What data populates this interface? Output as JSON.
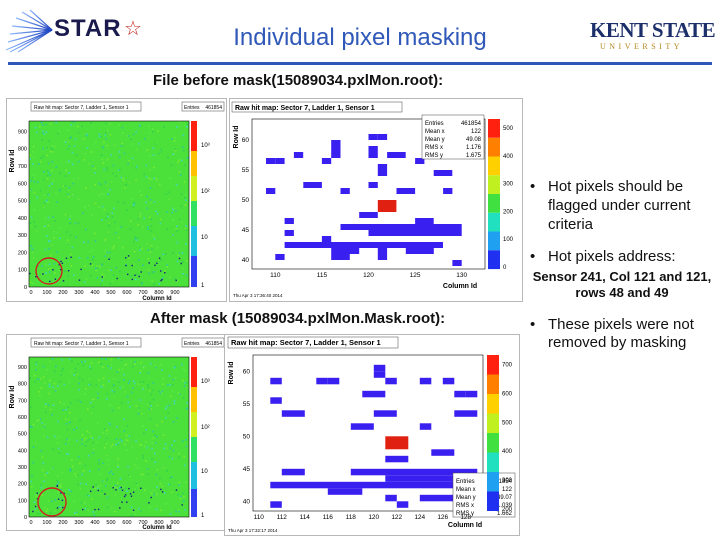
{
  "header": {
    "title": "Individual pixel masking",
    "star_logo_text": "STAR",
    "ksu_logo_text": "KENT STATE",
    "ksu_logo_sub": "UNIVERSITY"
  },
  "captions": {
    "before": "File before mask(15089034.pxlMon.root):",
    "after": "After mask (15089034.pxlMon.Mask.root):"
  },
  "bullets": {
    "b1": "Hot pixels should be flagged under current criteria",
    "b2": "Hot pixels address:",
    "b2_detail": "Sensor 241, Col 121 and 121, rows 48 and 49",
    "b3": "These pixels were not removed by masking"
  },
  "top": {
    "full_map": {
      "title": "Raw hit map: Sector 7, Ladder 1, Sensor 1",
      "entries_label": "Entries",
      "entries_value": "461854",
      "xlabel": "Column Id",
      "ylabel": "Row Id",
      "footer": "Thu Apr 3 17:36:40 2014",
      "xticks": [
        "0",
        "100",
        "200",
        "300",
        "400",
        "500",
        "600",
        "700",
        "800",
        "900"
      ],
      "yticks": [
        "0",
        "100",
        "200",
        "300",
        "400",
        "500",
        "600",
        "700",
        "800",
        "900"
      ],
      "zticks": [
        "1",
        "10",
        "10²",
        "10³"
      ]
    },
    "zoom_map": {
      "title": "Raw hit map: Sector 7, Ladder 1, Sensor 1",
      "xlabel": "Column Id",
      "ylabel": "Row Id",
      "footer": "Thu Apr 3 17:36:40 2014",
      "xticks": [
        "110",
        "115",
        "120",
        "125",
        "130"
      ],
      "yticks": [
        "40",
        "45",
        "50",
        "55",
        "60"
      ],
      "zticks": [
        "0",
        "100",
        "200",
        "300",
        "400",
        "500"
      ],
      "stats": [
        {
          "label": "Entries",
          "value": "461854"
        },
        {
          "label": "Mean x",
          "value": "122"
        },
        {
          "label": "Mean y",
          "value": "49.08"
        },
        {
          "label": "RMS x",
          "value": "1.176"
        },
        {
          "label": "RMS y",
          "value": "1.675"
        }
      ]
    }
  },
  "bottom": {
    "full_map": {
      "title": "Raw hit map: Sector 7, Ladder 1, Sensor 1",
      "entries_label": "Entries",
      "entries_value": "461854",
      "xlabel": "Column Id",
      "ylabel": "Row Id",
      "xticks": [
        "0",
        "100",
        "200",
        "300",
        "400",
        "500",
        "600",
        "700",
        "800",
        "900"
      ],
      "yticks": [
        "0",
        "100",
        "200",
        "300",
        "400",
        "500",
        "600",
        "700",
        "800",
        "900"
      ],
      "zticks": [
        "1",
        "10",
        "10²",
        "10³"
      ]
    },
    "zoom_map": {
      "title": "Raw hit map: Sector 7, Ladder 1, Sensor 1",
      "xlabel": "Column Id",
      "ylabel": "Row Id",
      "footer": "Thu Apr 3 17:32:17 2014",
      "xticks": [
        "110",
        "112",
        "114",
        "116",
        "118",
        "120",
        "122",
        "124",
        "126",
        "128"
      ],
      "yticks": [
        "40",
        "45",
        "50",
        "55",
        "60"
      ],
      "zticks": [
        "200",
        "300",
        "400",
        "500",
        "600",
        "700"
      ],
      "stats": [
        {
          "label": "Entries",
          "value": "461854"
        },
        {
          "label": "Mean x",
          "value": "122"
        },
        {
          "label": "Mean y",
          "value": "49.07"
        },
        {
          "label": "RMS x",
          "value": "1.039"
        },
        {
          "label": "RMS y",
          "value": "1.662"
        }
      ]
    }
  },
  "colors": {
    "title_blue": "#2f58b8",
    "hot_red": "#e02010",
    "pixel_blue": "#3a20f0",
    "map_green": "#4ce03a",
    "circle_red": "#d02020"
  }
}
